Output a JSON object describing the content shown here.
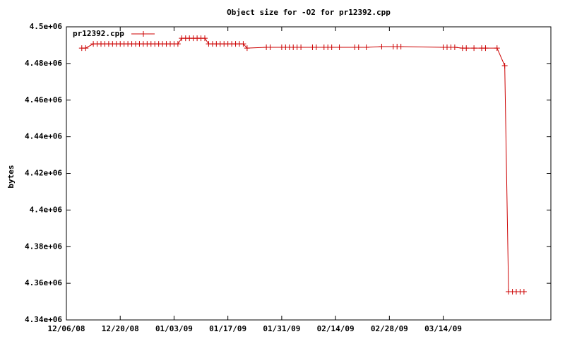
{
  "chart_data": {
    "type": "line",
    "title": "Object size for -O2 for pr12392.cpp",
    "ylabel": "bytes",
    "legend": "top-left",
    "xlim": [
      "2008-12-06",
      "2009-04-11"
    ],
    "xticks": [
      {
        "value": "2008-12-06",
        "label": "12/06/08"
      },
      {
        "value": "2008-12-20",
        "label": "12/20/08"
      },
      {
        "value": "2009-01-03",
        "label": "01/03/09"
      },
      {
        "value": "2009-01-17",
        "label": "01/17/09"
      },
      {
        "value": "2009-01-31",
        "label": "01/31/09"
      },
      {
        "value": "2009-02-14",
        "label": "02/14/09"
      },
      {
        "value": "2009-02-28",
        "label": "02/28/09"
      },
      {
        "value": "2009-03-14",
        "label": "03/14/09"
      }
    ],
    "ylim": [
      4340000,
      4500000
    ],
    "yticks": [
      {
        "value": 4340000,
        "label": "4.34e+06"
      },
      {
        "value": 4360000,
        "label": "4.36e+06"
      },
      {
        "value": 4380000,
        "label": "4.38e+06"
      },
      {
        "value": 4400000,
        "label": "4.4e+06"
      },
      {
        "value": 4420000,
        "label": "4.42e+06"
      },
      {
        "value": 4440000,
        "label": "4.44e+06"
      },
      {
        "value": 4460000,
        "label": "4.46e+06"
      },
      {
        "value": 4480000,
        "label": "4.48e+06"
      },
      {
        "value": 4500000,
        "label": "4.5e+06"
      }
    ],
    "x": [
      "2008-12-10",
      "2008-12-11",
      "2008-12-13",
      "2008-12-14",
      "2008-12-15",
      "2008-12-16",
      "2008-12-17",
      "2008-12-18",
      "2008-12-19",
      "2008-12-20",
      "2008-12-21",
      "2008-12-22",
      "2008-12-23",
      "2008-12-24",
      "2008-12-25",
      "2008-12-26",
      "2008-12-27",
      "2008-12-28",
      "2008-12-29",
      "2008-12-30",
      "2008-12-31",
      "2009-01-01",
      "2009-01-02",
      "2009-01-03",
      "2009-01-04",
      "2009-01-05",
      "2009-01-06",
      "2009-01-07",
      "2009-01-08",
      "2009-01-09",
      "2009-01-10",
      "2009-01-11",
      "2009-01-12",
      "2009-01-13",
      "2009-01-14",
      "2009-01-15",
      "2009-01-16",
      "2009-01-17",
      "2009-01-18",
      "2009-01-19",
      "2009-01-20",
      "2009-01-21",
      "2009-01-22",
      "2009-01-27",
      "2009-01-28",
      "2009-01-31",
      "2009-02-01",
      "2009-02-02",
      "2009-02-03",
      "2009-02-04",
      "2009-02-05",
      "2009-02-08",
      "2009-02-09",
      "2009-02-11",
      "2009-02-12",
      "2009-02-13",
      "2009-02-15",
      "2009-02-19",
      "2009-02-20",
      "2009-02-22",
      "2009-02-26",
      "2009-03-01",
      "2009-03-02",
      "2009-03-03",
      "2009-03-14",
      "2009-03-15",
      "2009-03-16",
      "2009-03-17",
      "2009-03-19",
      "2009-03-20",
      "2009-03-22",
      "2009-03-24",
      "2009-03-25",
      "2009-03-28",
      "2009-03-30",
      "2009-03-31",
      "2009-04-01",
      "2009-04-02",
      "2009-04-03",
      "2009-04-04"
    ],
    "series": [
      {
        "name": "pr12392.cpp",
        "color": "#cc0000",
        "values": [
          4488400,
          4488400,
          4490700,
          4490700,
          4490700,
          4490700,
          4490700,
          4490700,
          4490700,
          4490700,
          4490700,
          4490700,
          4490700,
          4490700,
          4490700,
          4490700,
          4490700,
          4490700,
          4490700,
          4490700,
          4490700,
          4490700,
          4490700,
          4490700,
          4490700,
          4493800,
          4493800,
          4493800,
          4493800,
          4493800,
          4493800,
          4493800,
          4490700,
          4490700,
          4490700,
          4490700,
          4490700,
          4490700,
          4490700,
          4490700,
          4490700,
          4490700,
          4488400,
          4488800,
          4488800,
          4488800,
          4488800,
          4488800,
          4488800,
          4488800,
          4488800,
          4488800,
          4488800,
          4488800,
          4488800,
          4488800,
          4488800,
          4488800,
          4488800,
          4488800,
          4489200,
          4489200,
          4489200,
          4489200,
          4488800,
          4488800,
          4488800,
          4488800,
          4488400,
          4488400,
          4488400,
          4488400,
          4488400,
          4488400,
          4478800,
          4355400,
          4355400,
          4355400,
          4355400,
          4355400
        ]
      }
    ]
  }
}
